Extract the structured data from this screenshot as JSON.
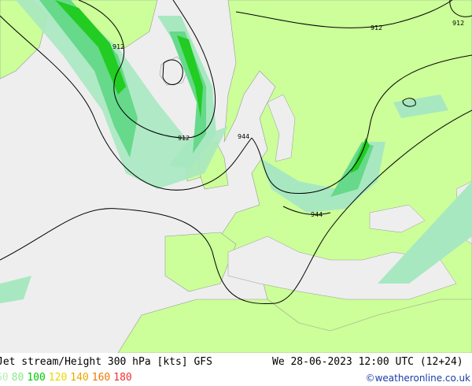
{
  "map": {
    "contour_labels": [
      "912",
      "912",
      "912",
      "912",
      "944",
      "944"
    ],
    "colors": {
      "sea": "#eeeeee",
      "land": "#ccff99",
      "jet_light": "#a8e8c0",
      "jet_mid": "#66d98a",
      "jet_strong": "#22cc22",
      "border": "#999999"
    }
  },
  "footer": {
    "title": "Jet stream/Height 300 hPa [kts] GFS",
    "date": "We 28-06-2023 12:00 UTC (12+24)",
    "credit": "©weatheronline.co.uk",
    "legend": [
      {
        "label": "60",
        "color": "#b8f0b0"
      },
      {
        "label": "80",
        "color": "#88e888"
      },
      {
        "label": "100",
        "color": "#00cc00"
      },
      {
        "label": "120",
        "color": "#e8d800"
      },
      {
        "label": "140",
        "color": "#e8a800"
      },
      {
        "label": "160",
        "color": "#f07800"
      },
      {
        "label": "180",
        "color": "#f03030"
      }
    ]
  }
}
